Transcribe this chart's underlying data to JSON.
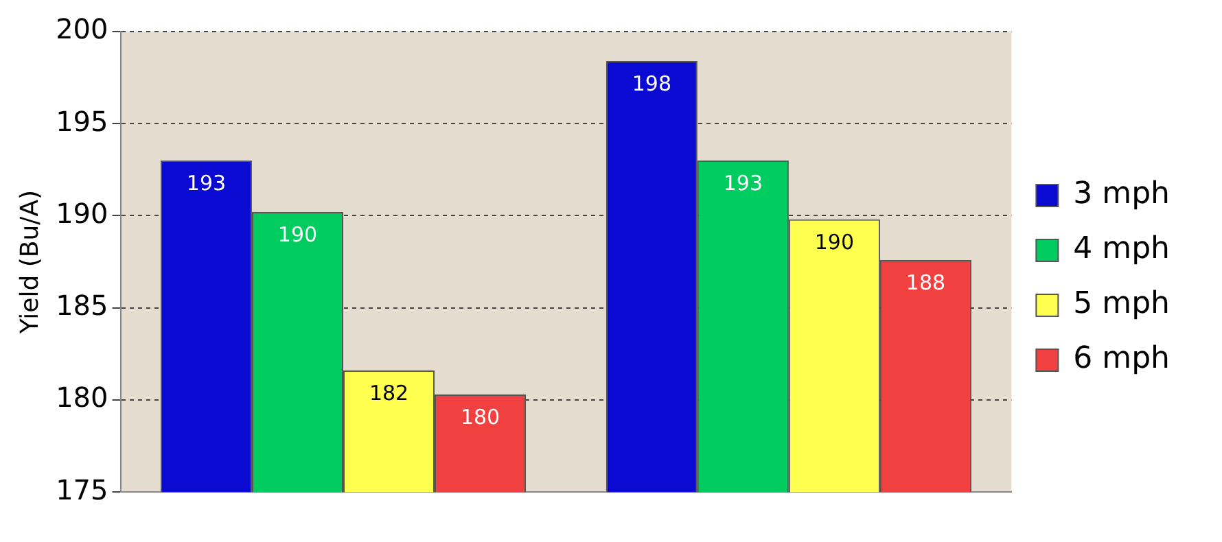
{
  "chart_data": {
    "type": "bar",
    "ylabel": "Yield (Bu/A)",
    "categories": [
      null,
      null
    ],
    "series": [
      {
        "name": "3 mph",
        "color": "#0a0ad2",
        "values": [
          193.0,
          198.4
        ],
        "value_labels": [
          "193",
          "198"
        ]
      },
      {
        "name": "4 mph",
        "color": "#00cc60",
        "values": [
          190.2,
          193.0
        ],
        "value_labels": [
          "190",
          "193"
        ]
      },
      {
        "name": "5 mph",
        "color": "#ffff50",
        "values": [
          181.6,
          189.8
        ],
        "value_labels": [
          "182",
          "190"
        ]
      },
      {
        "name": "6 mph",
        "color": "#f04040",
        "values": [
          180.3,
          187.6
        ],
        "value_labels": [
          "180",
          "188"
        ]
      }
    ],
    "ylim": [
      175,
      200
    ],
    "yticks": [
      175,
      180,
      185,
      190,
      195,
      200
    ],
    "grid": "y",
    "legend": "right"
  }
}
